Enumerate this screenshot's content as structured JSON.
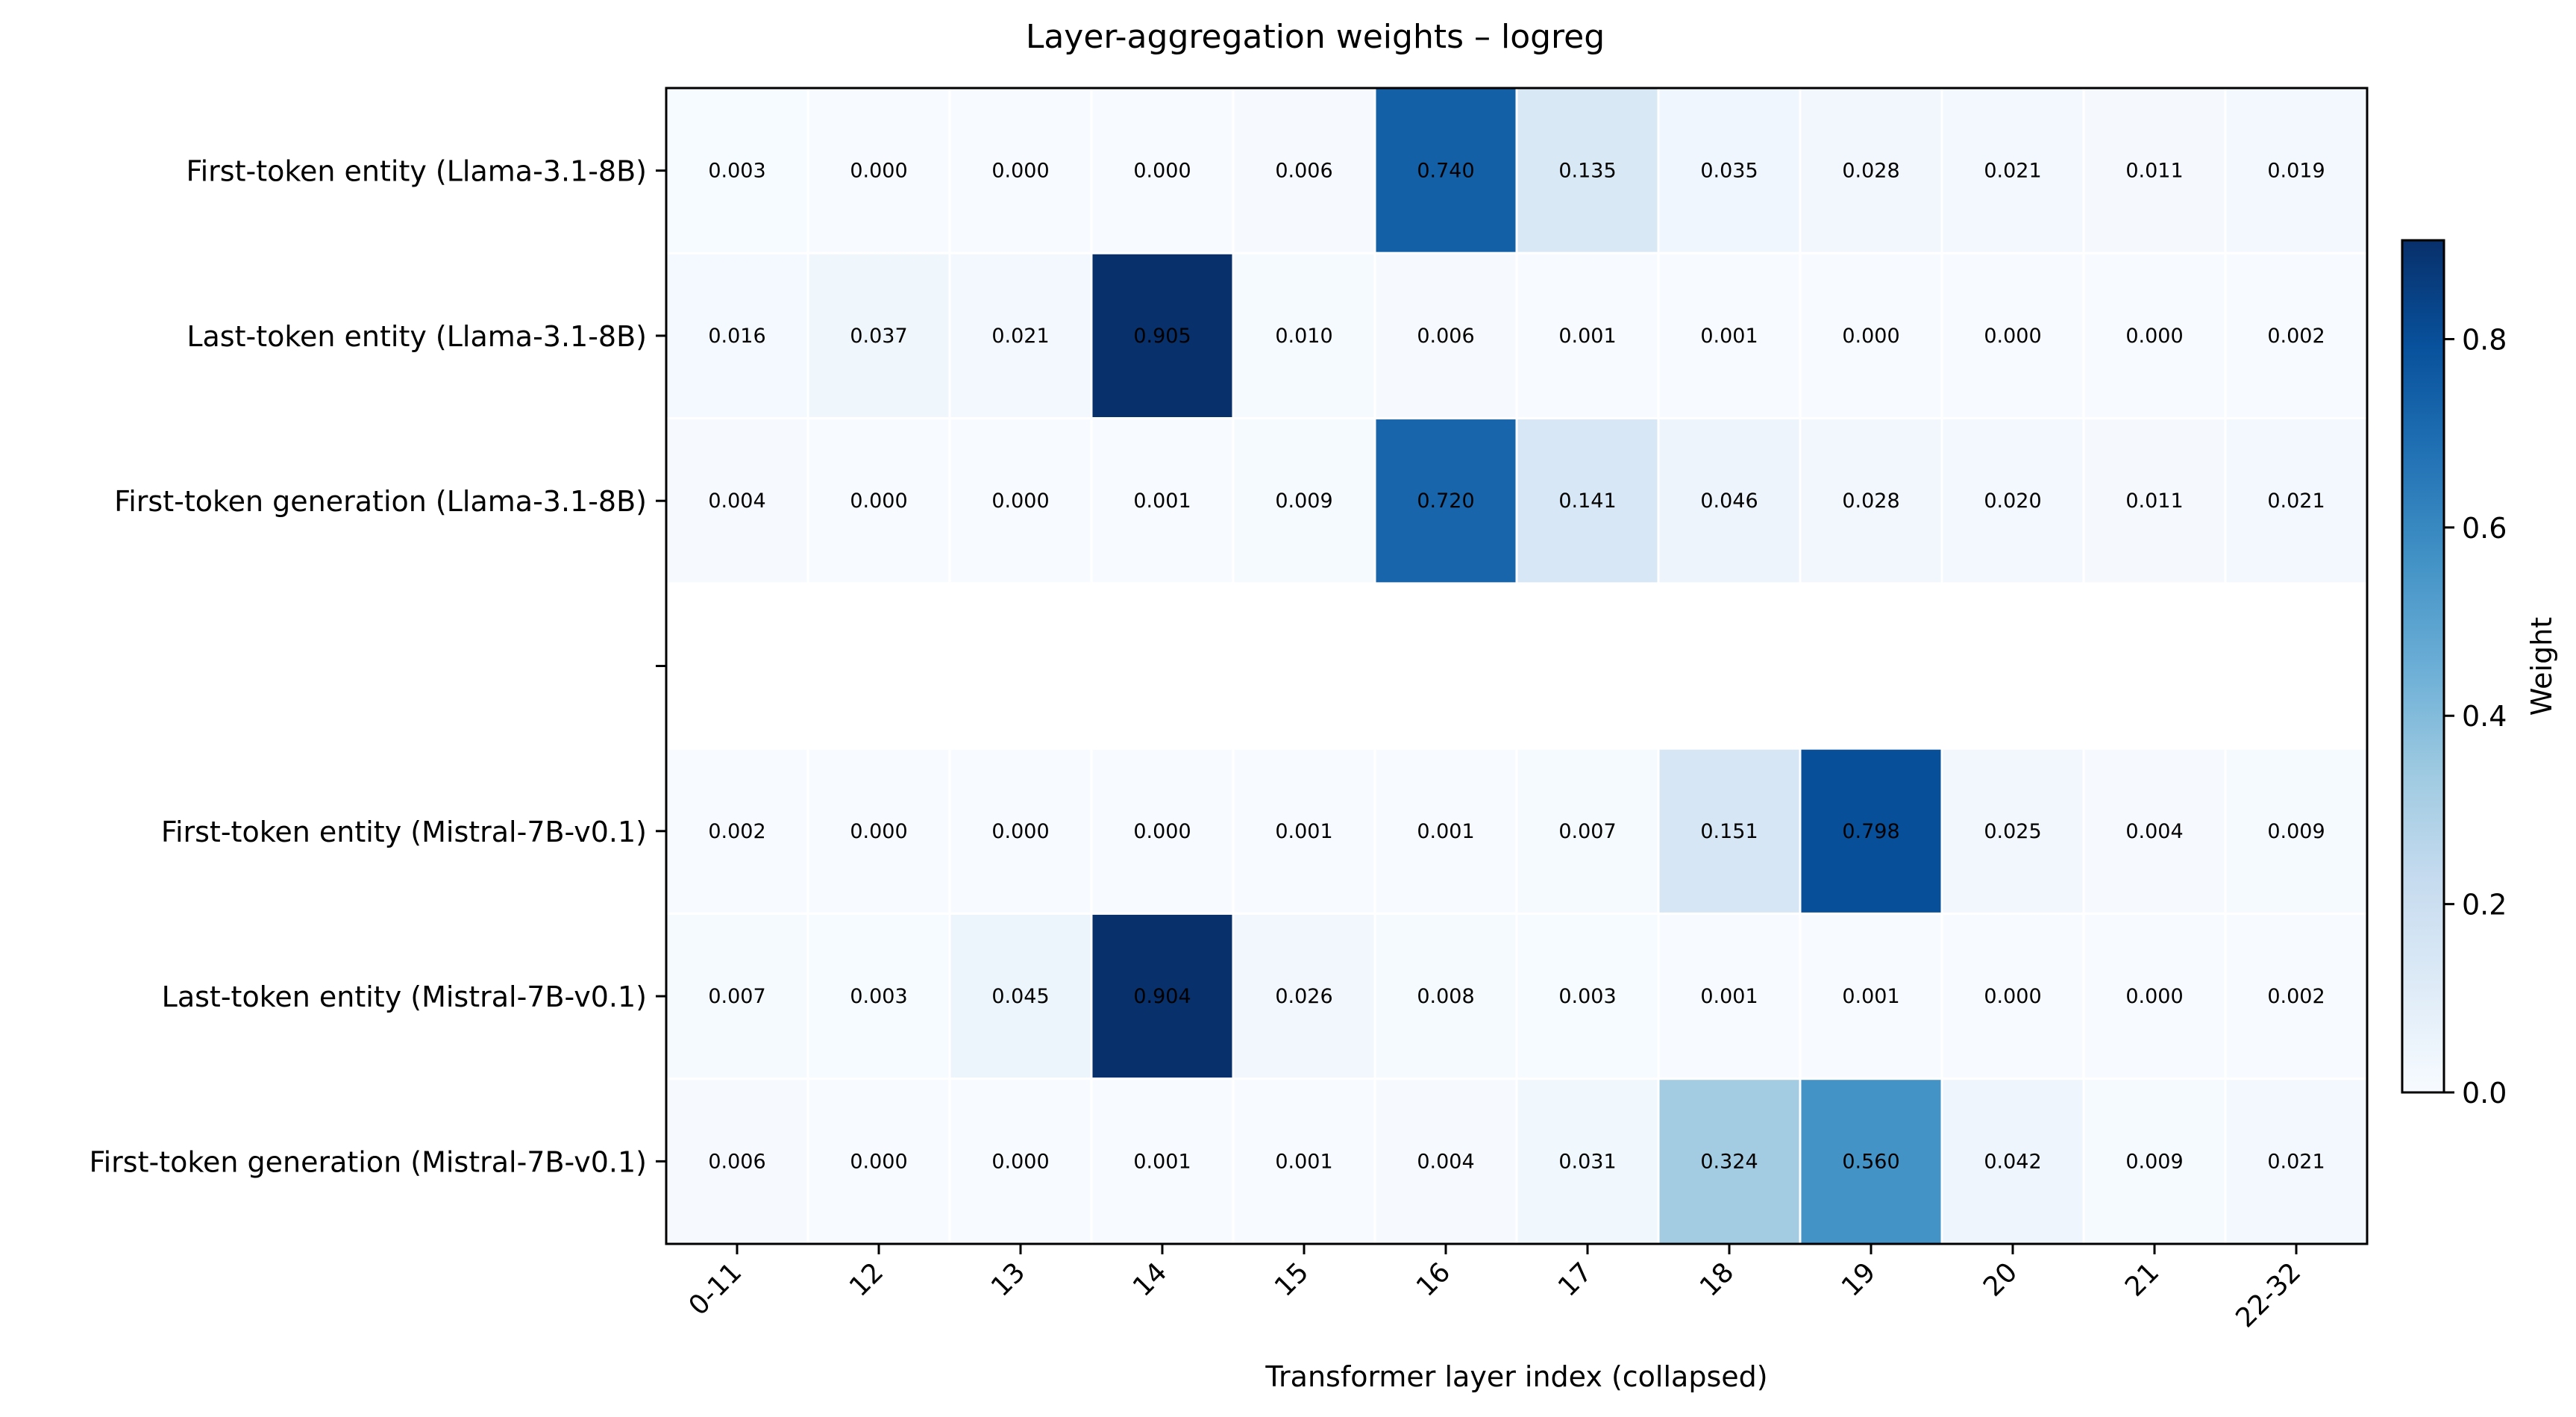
{
  "chart_data": {
    "type": "heatmap",
    "title": "Layer-aggregation weights – logreg",
    "xlabel": "Transformer layer index (collapsed)",
    "ylabel": "",
    "x_tick_labels": [
      "0-11",
      "12",
      "13",
      "14",
      "15",
      "16",
      "17",
      "18",
      "19",
      "20",
      "21",
      "22-32"
    ],
    "rows": [
      {
        "label": "First-token entity  (Llama-3.1-8B)",
        "values": [
          0.003,
          0.0,
          0.0,
          0.0,
          0.006,
          0.74,
          0.135,
          0.035,
          0.028,
          0.021,
          0.011,
          0.019
        ]
      },
      {
        "label": "Last-token entity  (Llama-3.1-8B)",
        "values": [
          0.016,
          0.037,
          0.021,
          0.905,
          0.01,
          0.006,
          0.001,
          0.001,
          0.0,
          0.0,
          0.0,
          0.002
        ]
      },
      {
        "label": "First-token generation  (Llama-3.1-8B)",
        "values": [
          0.004,
          0.0,
          0.0,
          0.001,
          0.009,
          0.72,
          0.141,
          0.046,
          0.028,
          0.02,
          0.011,
          0.021
        ]
      },
      {
        "label": "",
        "values": null
      },
      {
        "label": "First-token entity  (Mistral-7B-v0.1)",
        "values": [
          0.002,
          0.0,
          0.0,
          0.0,
          0.001,
          0.001,
          0.007,
          0.151,
          0.798,
          0.025,
          0.004,
          0.009
        ]
      },
      {
        "label": "Last-token entity  (Mistral-7B-v0.1)",
        "values": [
          0.007,
          0.003,
          0.045,
          0.904,
          0.026,
          0.008,
          0.003,
          0.001,
          0.001,
          0.0,
          0.0,
          0.002
        ]
      },
      {
        "label": "First-token generation  (Mistral-7B-v0.1)",
        "values": [
          0.006,
          0.0,
          0.0,
          0.001,
          0.001,
          0.004,
          0.031,
          0.324,
          0.56,
          0.042,
          0.009,
          0.021
        ]
      }
    ],
    "colorbar": {
      "label": "Weight",
      "range": [
        0,
        0.905
      ],
      "ticks": [
        0.0,
        0.2,
        0.4,
        0.6,
        0.8
      ],
      "tick_labels": [
        "0.0",
        "0.2",
        "0.4",
        "0.6",
        "0.8"
      ],
      "colormap": "Blues",
      "colormap_stops": [
        "#f7fbff",
        "#deebf7",
        "#c6dbef",
        "#9ecae1",
        "#6baed6",
        "#4292c6",
        "#2171b5",
        "#08519c",
        "#08306b"
      ]
    },
    "cell_text_color": "#000000",
    "grid_line_color": "#ffffff"
  }
}
